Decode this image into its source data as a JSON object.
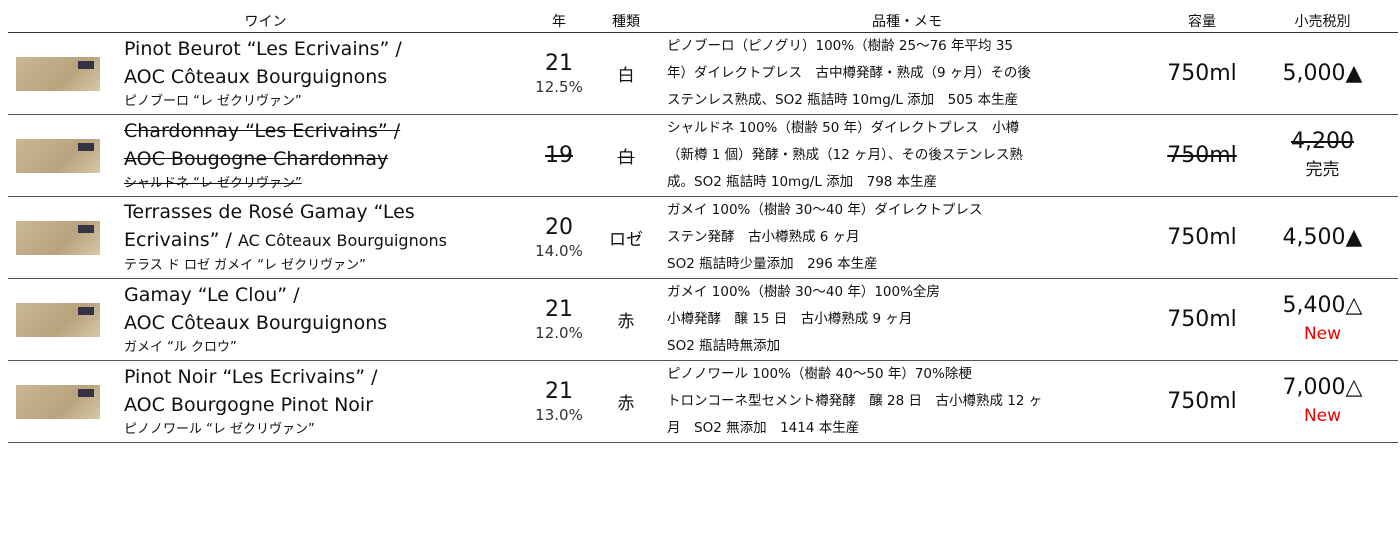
{
  "header": [
    "ワイン",
    "年",
    "種類",
    "品種・メモ",
    "容量",
    "小売税別"
  ],
  "rows": [
    {
      "name": [
        "Pinot Beurot “Les Ecrivains” /",
        "AOC Côteaux Bourguignons"
      ],
      "kana": "ピノブーロ “レ ゼクリヴァン”",
      "year": "21",
      "abv": "12.5%",
      "type": "白",
      "memo": [
        "ピノブーロ（ピノグリ）100%（樹齢 25〜76 年平均 35",
        "年）ダイレクトプレス　古中樽発酵・熟成（9 ヶ月）その後",
        "ステンレス熟成、SO2 瓶詰時 10mg/L 添加　505 本生産"
      ],
      "volume": "750ml",
      "price": "5,000▲"
    },
    {
      "name": [
        "Chardonnay “Les Ecrivains” /",
        "AOC Bougogne Chardonnay"
      ],
      "kana": "シャルドネ “レ ゼクリヴァン”",
      "year": "19",
      "type": "白",
      "memo": [
        "シャルドネ 100%（樹齢 50 年）ダイレクトプレス　小樽",
        "（新樽 1 個）発酵・熟成（12 ヶ月）、その後ステンレス熟",
        "成。SO2 瓶詰時 10mg/L 添加　798 本生産"
      ],
      "volume": "750ml",
      "price": "4,200",
      "note": "完売"
    },
    {
      "name": [
        "Terrasses de Rosé Gamay “Les",
        [
          "Ecrivains” /",
          "AC Côteaux Bourguignons"
        ]
      ],
      "kana": "テラス ド ロゼ ガメイ “レ ゼクリヴァン”",
      "year": "20",
      "abv": "14.0%",
      "type": "ロゼ",
      "memo": [
        "ガメイ 100%（樹齢 30〜40 年）ダイレクトプレス",
        "ステン発酵　古小樽熟成 6 ヶ月",
        "SO2 瓶詰時少量添加　296 本生産"
      ],
      "volume": "750ml",
      "price": "4,500▲"
    },
    {
      "name": [
        "Gamay “Le Clou” /",
        "AOC Côteaux Bourguignons"
      ],
      "kana": "ガメイ “ル クロウ”",
      "year": "21",
      "abv": "12.0%",
      "type": "赤",
      "memo": [
        "ガメイ 100%（樹齢 30〜40 年）100%全房",
        "小樽発酵　醸 15 日　古小樽熟成 9 ヶ月",
        "SO2 瓶詰時無添加"
      ],
      "volume": "750ml",
      "price": "5,400△",
      "note": "New"
    },
    {
      "name": [
        "Pinot Noir “Les Ecrivains” /",
        "AOC Bourgogne Pinot Noir"
      ],
      "kana": "ピノノワール “レ ゼクリヴァン”",
      "year": "21",
      "abv": "13.0%",
      "type": "赤",
      "memo": [
        "ピノノワール 100%（樹齢 40〜50 年）70%除梗",
        "トロンコーネ型セメント樽発酵　醸 28 日　古小樽熟成 12 ヶ",
        "月　SO2 無添加　1414 本生産"
      ],
      "volume": "750ml",
      "price": "7,000△",
      "note": "New"
    }
  ]
}
